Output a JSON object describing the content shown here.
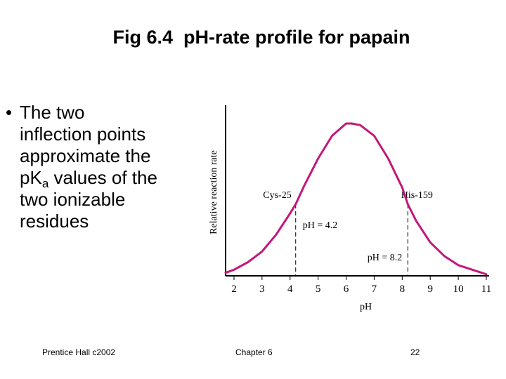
{
  "slide": {
    "title": "Fig 6.4  pH-rate profile for papain",
    "bullet_marker": "•",
    "bullet_lines": [
      "The two",
      "inflection points",
      "approximate the"
    ],
    "pka_prefix": "pK",
    "pka_sub": "a",
    "pka_suffix": " values of the",
    "bullet_lines_after": [
      "two ionizable",
      "residues"
    ]
  },
  "footer": {
    "left": "Prentice Hall c2002",
    "center": "Chapter 6",
    "right": "22"
  },
  "chart_data": {
    "type": "line",
    "title": "",
    "xlabel": "pH",
    "ylabel": "Relative reaction rate",
    "xlim": [
      1.7,
      11
    ],
    "ylim": [
      0,
      1.12
    ],
    "x_ticks": [
      2,
      3,
      4,
      5,
      6,
      7,
      8,
      9,
      10,
      11
    ],
    "y_ticks": [],
    "grid": false,
    "series": [
      {
        "color": "#c2187a",
        "x": [
          1.7,
          2,
          2.5,
          3,
          3.5,
          4,
          4.2,
          4.5,
          5,
          5.5,
          6,
          6.2,
          6.5,
          7,
          7.5,
          8,
          8.2,
          8.5,
          9,
          9.5,
          10,
          10.5,
          11
        ],
        "y": [
          0.02,
          0.04,
          0.09,
          0.16,
          0.27,
          0.41,
          0.47,
          0.59,
          0.77,
          0.92,
          1.0,
          1.0,
          0.99,
          0.92,
          0.77,
          0.58,
          0.47,
          0.36,
          0.22,
          0.13,
          0.07,
          0.04,
          0.01
        ]
      }
    ],
    "markers": [
      {
        "x": 4.2,
        "y": 0.47,
        "label": "pH = 4.2",
        "residue": "Cys-25"
      },
      {
        "x": 8.2,
        "y": 0.47,
        "label": "pH = 8.2",
        "residue": "His-159"
      }
    ]
  }
}
